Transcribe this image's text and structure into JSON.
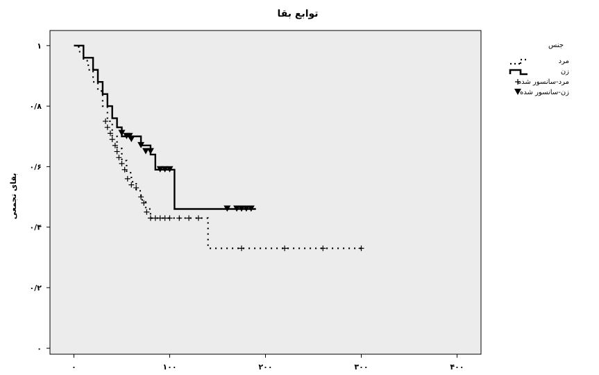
{
  "chart_data": {
    "type": "line",
    "subtype": "kaplan-meier",
    "title": "توابع بقا",
    "xlabel": "",
    "ylabel": "بقای تجمعی",
    "xlim": [
      -25,
      425
    ],
    "ylim": [
      -0.02,
      1.05
    ],
    "xticks": [
      0,
      100,
      200,
      300,
      400
    ],
    "xtick_labels": [
      "۰",
      "۱۰۰",
      "۲۰۰",
      "۳۰۰",
      "۴۰۰"
    ],
    "yticks": [
      0,
      0.2,
      0.4,
      0.6,
      0.8,
      1
    ],
    "ytick_labels": [
      "۰",
      "۰/۲",
      "۰/۴",
      "۰/۶",
      "۰/۸",
      "۱"
    ],
    "background": "#ececec",
    "grid": false,
    "legend": {
      "title": "جنس",
      "placement": "right",
      "entries": [
        "مرد",
        "زن",
        "مرد-سانسور شده",
        "زن-سانسور شده"
      ]
    },
    "series": [
      {
        "name": "مرد",
        "style": "dotted",
        "censor_marker": "plus",
        "steps": [
          [
            0,
            1.0
          ],
          [
            5,
            0.98
          ],
          [
            10,
            0.95
          ],
          [
            15,
            0.92
          ],
          [
            20,
            0.88
          ],
          [
            25,
            0.85
          ],
          [
            30,
            0.8
          ],
          [
            35,
            0.75
          ],
          [
            40,
            0.7
          ],
          [
            45,
            0.66
          ],
          [
            50,
            0.62
          ],
          [
            55,
            0.58
          ],
          [
            60,
            0.55
          ],
          [
            65,
            0.52
          ],
          [
            70,
            0.49
          ],
          [
            75,
            0.46
          ],
          [
            80,
            0.43
          ],
          [
            140,
            0.33
          ],
          [
            300,
            0.33
          ]
        ],
        "censored": [
          [
            33,
            0.75
          ],
          [
            35,
            0.73
          ],
          [
            38,
            0.71
          ],
          [
            40,
            0.69
          ],
          [
            43,
            0.67
          ],
          [
            45,
            0.65
          ],
          [
            47,
            0.63
          ],
          [
            50,
            0.61
          ],
          [
            53,
            0.59
          ],
          [
            56,
            0.56
          ],
          [
            60,
            0.54
          ],
          [
            65,
            0.53
          ],
          [
            70,
            0.5
          ],
          [
            73,
            0.48
          ],
          [
            76,
            0.45
          ],
          [
            80,
            0.43
          ],
          [
            85,
            0.43
          ],
          [
            90,
            0.43
          ],
          [
            95,
            0.43
          ],
          [
            100,
            0.43
          ],
          [
            110,
            0.43
          ],
          [
            120,
            0.43
          ],
          [
            130,
            0.43
          ],
          [
            175,
            0.33
          ],
          [
            220,
            0.33
          ],
          [
            260,
            0.33
          ],
          [
            300,
            0.33
          ]
        ]
      },
      {
        "name": "زن",
        "style": "solid",
        "censor_marker": "triangle-down",
        "steps": [
          [
            0,
            1.0
          ],
          [
            10,
            0.96
          ],
          [
            20,
            0.92
          ],
          [
            25,
            0.88
          ],
          [
            30,
            0.84
          ],
          [
            35,
            0.8
          ],
          [
            40,
            0.76
          ],
          [
            45,
            0.73
          ],
          [
            50,
            0.7
          ],
          [
            70,
            0.67
          ],
          [
            80,
            0.64
          ],
          [
            85,
            0.59
          ],
          [
            105,
            0.46
          ],
          [
            190,
            0.46
          ]
        ],
        "censored": [
          [
            50,
            0.71
          ],
          [
            55,
            0.7
          ],
          [
            58,
            0.7
          ],
          [
            60,
            0.69
          ],
          [
            70,
            0.67
          ],
          [
            75,
            0.65
          ],
          [
            80,
            0.65
          ],
          [
            90,
            0.59
          ],
          [
            95,
            0.59
          ],
          [
            100,
            0.59
          ],
          [
            160,
            0.46
          ],
          [
            170,
            0.46
          ],
          [
            175,
            0.46
          ],
          [
            180,
            0.46
          ],
          [
            185,
            0.46
          ]
        ]
      }
    ]
  }
}
